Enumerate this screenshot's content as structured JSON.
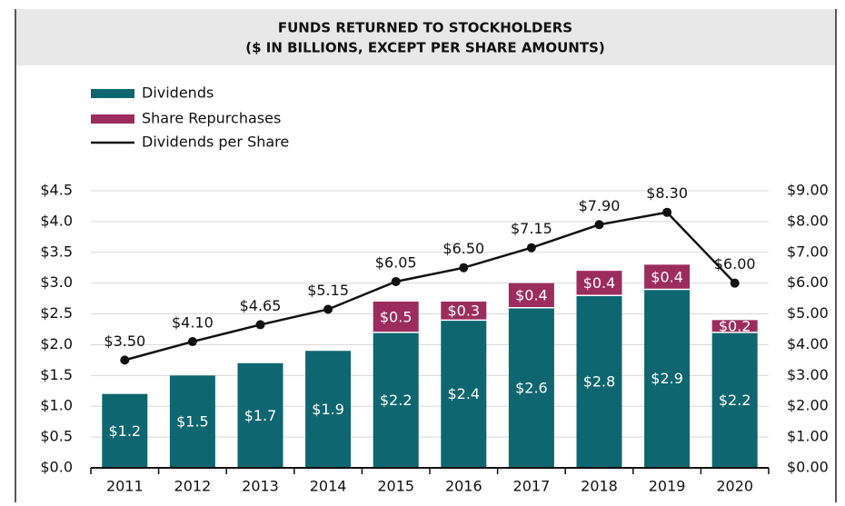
{
  "chart_data": {
    "type": "bar-line",
    "title": "FUNDS RETURNED TO STOCKHOLDERS",
    "subtitle": "($ IN BILLIONS, EXCEPT PER SHARE AMOUNTS)",
    "categories": [
      "2011",
      "2012",
      "2013",
      "2014",
      "2015",
      "2016",
      "2017",
      "2018",
      "2019",
      "2020"
    ],
    "series": [
      {
        "name": "Dividends",
        "type": "bar",
        "color": "#0e6670",
        "values": [
          1.2,
          1.5,
          1.7,
          1.9,
          2.2,
          2.4,
          2.6,
          2.8,
          2.9,
          2.2
        ],
        "value_labels": [
          "$1.2",
          "$1.5",
          "$1.7",
          "$1.9",
          "$2.2",
          "$2.4",
          "$2.6",
          "$2.8",
          "$2.9",
          "$2.2"
        ]
      },
      {
        "name": "Share Repurchases",
        "type": "bar",
        "color": "#9c2c5e",
        "values": [
          null,
          null,
          null,
          null,
          0.5,
          0.3,
          0.4,
          0.4,
          0.4,
          0.2
        ],
        "value_labels": [
          null,
          null,
          null,
          null,
          "$0.5",
          "$0.3",
          "$0.4",
          "$0.4",
          "$0.4",
          "$0.2"
        ]
      },
      {
        "name": "Dividends per Share",
        "type": "line",
        "axis": "y2",
        "color": "#111111",
        "values": [
          3.5,
          4.1,
          4.65,
          5.15,
          6.05,
          6.5,
          7.15,
          7.9,
          8.3,
          6.0
        ],
        "value_labels": [
          "$3.50",
          "$4.10",
          "$4.65",
          "$5.15",
          "$6.05",
          "$6.50",
          "$7.15",
          "$7.90",
          "$8.30",
          "$6.00"
        ]
      }
    ],
    "stacked": true,
    "ylim": [
      0,
      4.5
    ],
    "yticks": [
      {
        "value": 0,
        "label": "$0.0"
      },
      {
        "value": 0.5,
        "label": "$0.5"
      },
      {
        "value": 1,
        "label": "$1.0"
      },
      {
        "value": 1.5,
        "label": "$1.5"
      },
      {
        "value": 2,
        "label": "$2.0"
      },
      {
        "value": 2.5,
        "label": "$2.5"
      },
      {
        "value": 3,
        "label": "$3.0"
      },
      {
        "value": 3.5,
        "label": "$3.5"
      },
      {
        "value": 4,
        "label": "$4.0"
      },
      {
        "value": 4.5,
        "label": "$4.5"
      }
    ],
    "y2lim": [
      0,
      9
    ],
    "y2ticks": [
      {
        "value": 0,
        "label": "$0.00"
      },
      {
        "value": 1,
        "label": "$1.00"
      },
      {
        "value": 2,
        "label": "$2.00"
      },
      {
        "value": 3,
        "label": "$3.00"
      },
      {
        "value": 4,
        "label": "$4.00"
      },
      {
        "value": 5,
        "label": "$5.00"
      },
      {
        "value": 6,
        "label": "$6.00"
      },
      {
        "value": 7,
        "label": "$7.00"
      },
      {
        "value": 8,
        "label": "$8.00"
      },
      {
        "value": 9,
        "label": "$9.00"
      }
    ],
    "grid": true,
    "legend": "top-left"
  }
}
